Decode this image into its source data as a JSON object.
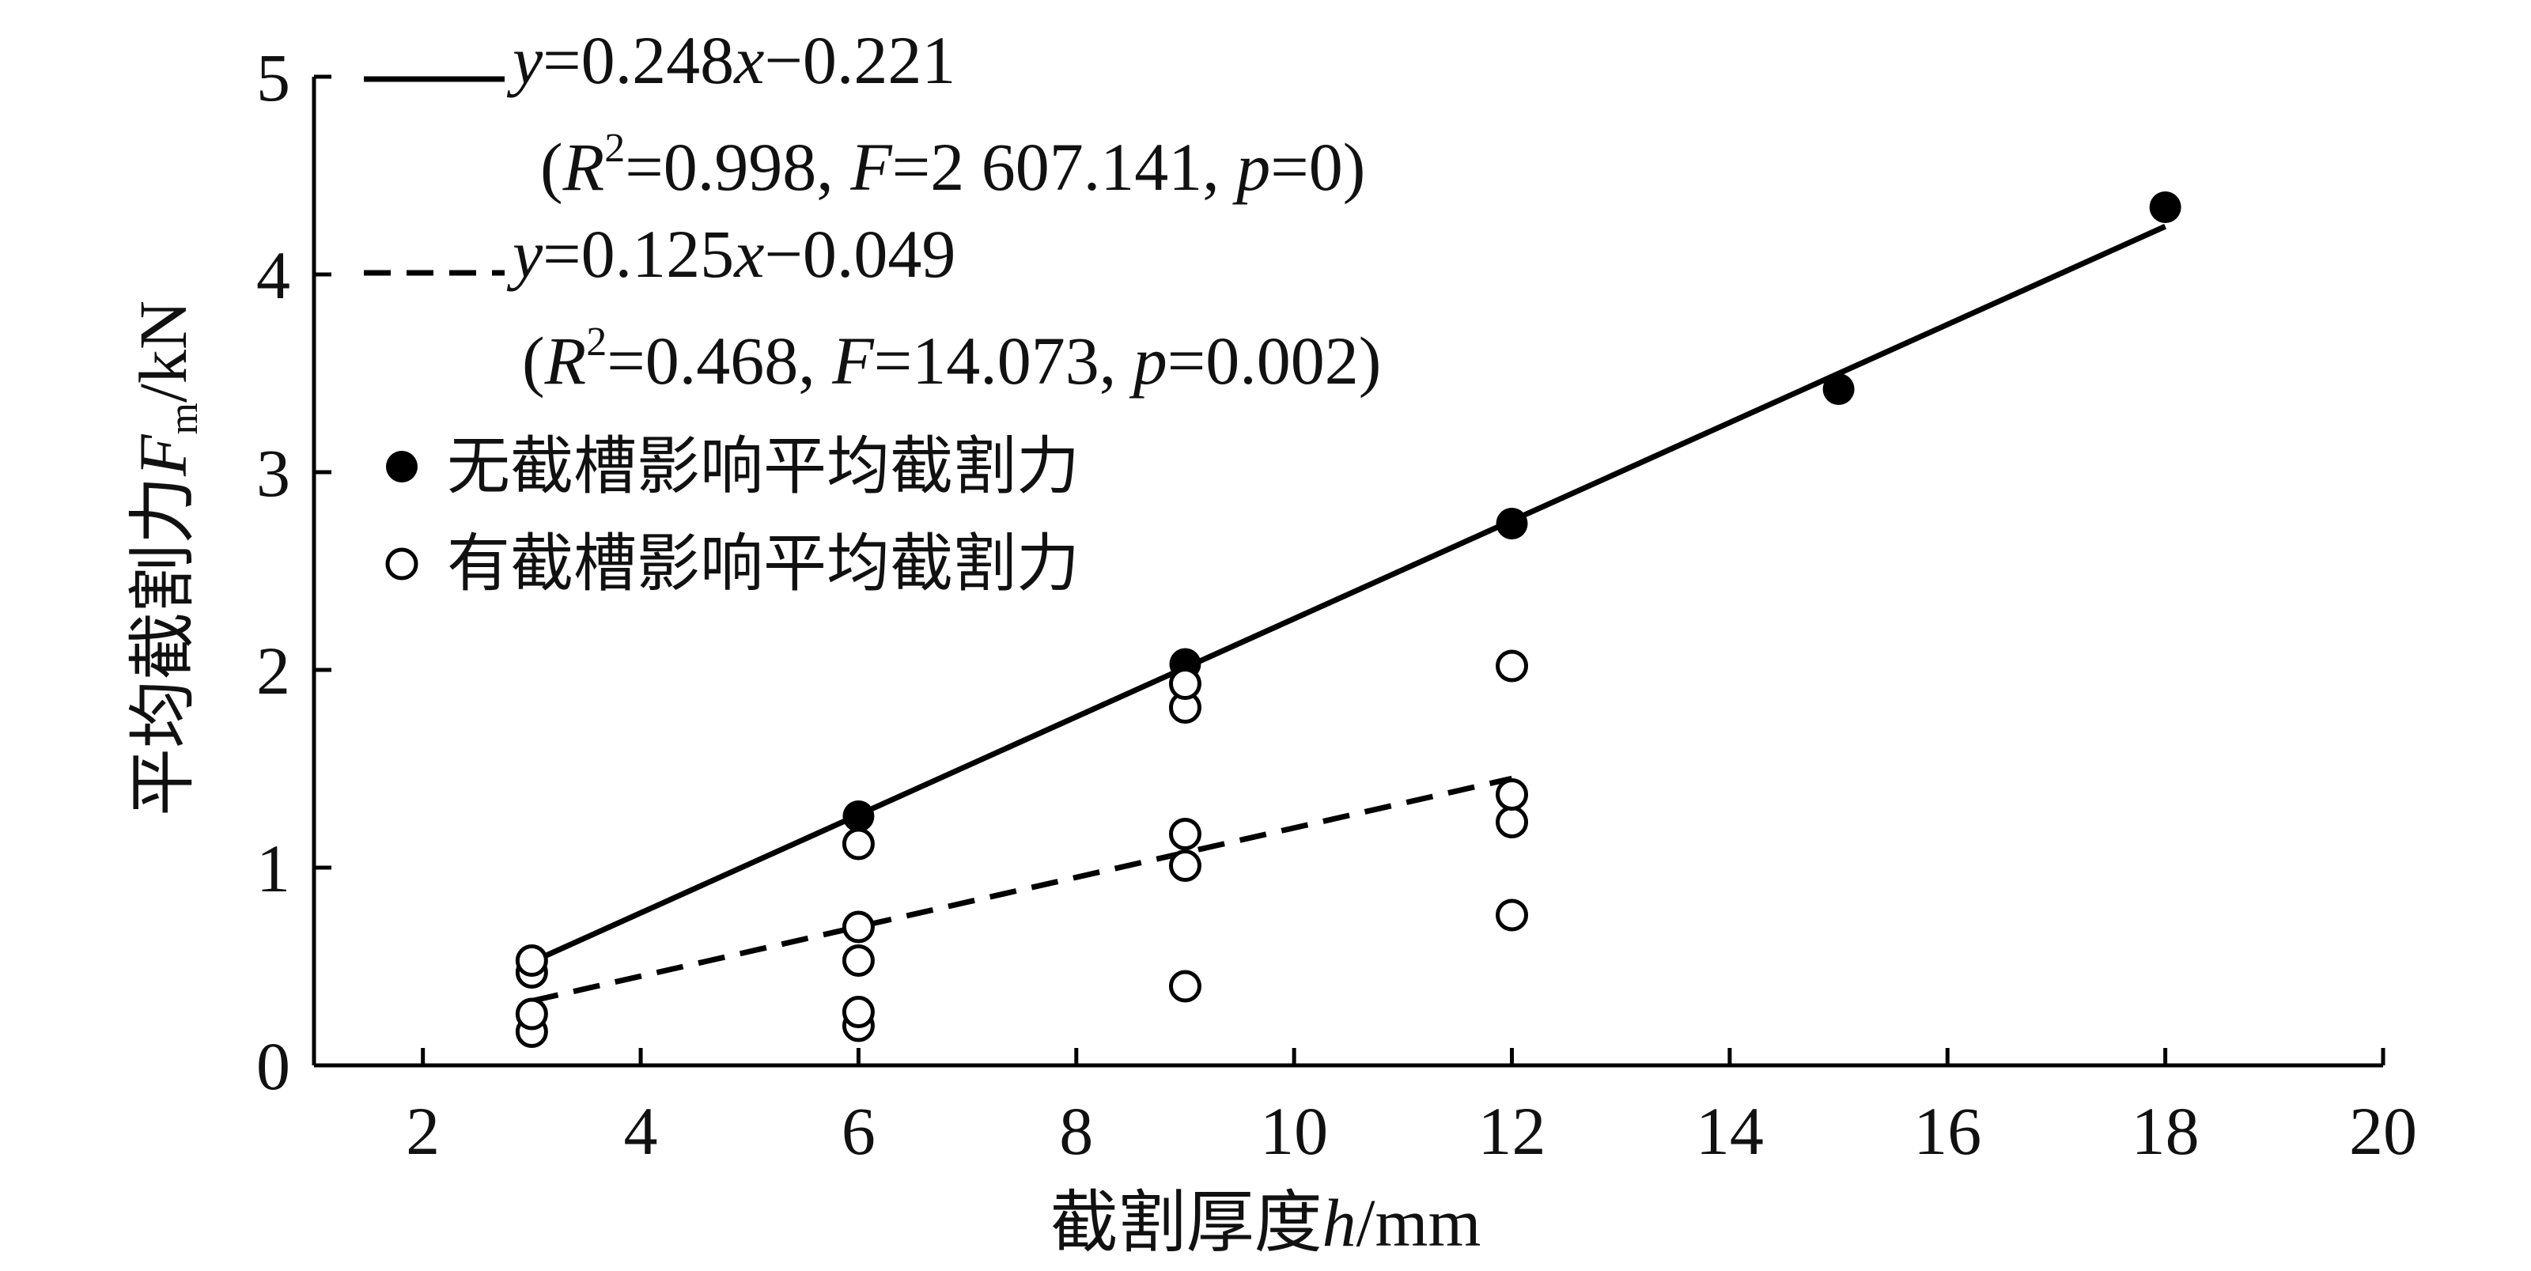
{
  "chart_data": {
    "type": "scatter",
    "xlabel_cn": "截割厚度",
    "xlabel_var": "h",
    "xlabel_unit": "/mm",
    "ylabel_cn": "平均截割力",
    "ylabel_var": "F",
    "ylabel_sub": "m",
    "ylabel_unit": "/kN",
    "xlim": [
      1,
      20
    ],
    "ylim": [
      0,
      5
    ],
    "xticks": [
      2,
      4,
      6,
      8,
      10,
      12,
      14,
      16,
      18,
      20
    ],
    "yticks": [
      0,
      1,
      2,
      3,
      4,
      5
    ],
    "grid": false,
    "legend_position": "top-left",
    "series": [
      {
        "name": "无截槽影响平均截割力",
        "marker": "filled-circle",
        "color": "#000000",
        "points": [
          {
            "x": 3,
            "y": 0.53
          },
          {
            "x": 6,
            "y": 1.26
          },
          {
            "x": 9,
            "y": 2.03
          },
          {
            "x": 12,
            "y": 2.74
          },
          {
            "x": 15,
            "y": 3.42
          },
          {
            "x": 18,
            "y": 4.34
          }
        ]
      },
      {
        "name": "有截槽影响平均截割力",
        "marker": "open-circle",
        "color": "#000000",
        "points": [
          {
            "x": 3,
            "y": 0.17
          },
          {
            "x": 3,
            "y": 0.26
          },
          {
            "x": 3,
            "y": 0.47
          },
          {
            "x": 3,
            "y": 0.53
          },
          {
            "x": 6,
            "y": 0.2
          },
          {
            "x": 6,
            "y": 0.27
          },
          {
            "x": 6,
            "y": 0.53
          },
          {
            "x": 6,
            "y": 0.7
          },
          {
            "x": 6,
            "y": 1.12
          },
          {
            "x": 9,
            "y": 0.4
          },
          {
            "x": 9,
            "y": 1.01
          },
          {
            "x": 9,
            "y": 1.17
          },
          {
            "x": 9,
            "y": 1.81
          },
          {
            "x": 9,
            "y": 1.93
          },
          {
            "x": 12,
            "y": 0.76
          },
          {
            "x": 12,
            "y": 1.23
          },
          {
            "x": 12,
            "y": 1.37
          },
          {
            "x": 12,
            "y": 2.02
          }
        ]
      }
    ],
    "fits": [
      {
        "style": "solid",
        "slope": 0.248,
        "intercept": -0.221,
        "x_range": [
          3,
          18
        ],
        "equation": {
          "y": "y",
          "mid": "=0.248",
          "x": "x",
          "tail": "−0.221"
        },
        "stats": {
          "open": "(",
          "R": "R",
          "sup": "2",
          "r_val": "=0.998, ",
          "F": "F",
          "f_val": "=2 607.141, ",
          "p": "p",
          "p_val": "=0)"
        }
      },
      {
        "style": "dashed",
        "slope": 0.125,
        "intercept": -0.049,
        "x_range": [
          3,
          12
        ],
        "equation": {
          "y": "y",
          "mid": "=0.125",
          "x": "x",
          "tail": "−0.049"
        },
        "stats": {
          "open": "(",
          "R": "R",
          "sup": "2",
          "r_val": "=0.468, ",
          "F": "F",
          "f_val": "=14.073, ",
          "p": "p",
          "p_val": "=0.002)"
        }
      }
    ]
  }
}
